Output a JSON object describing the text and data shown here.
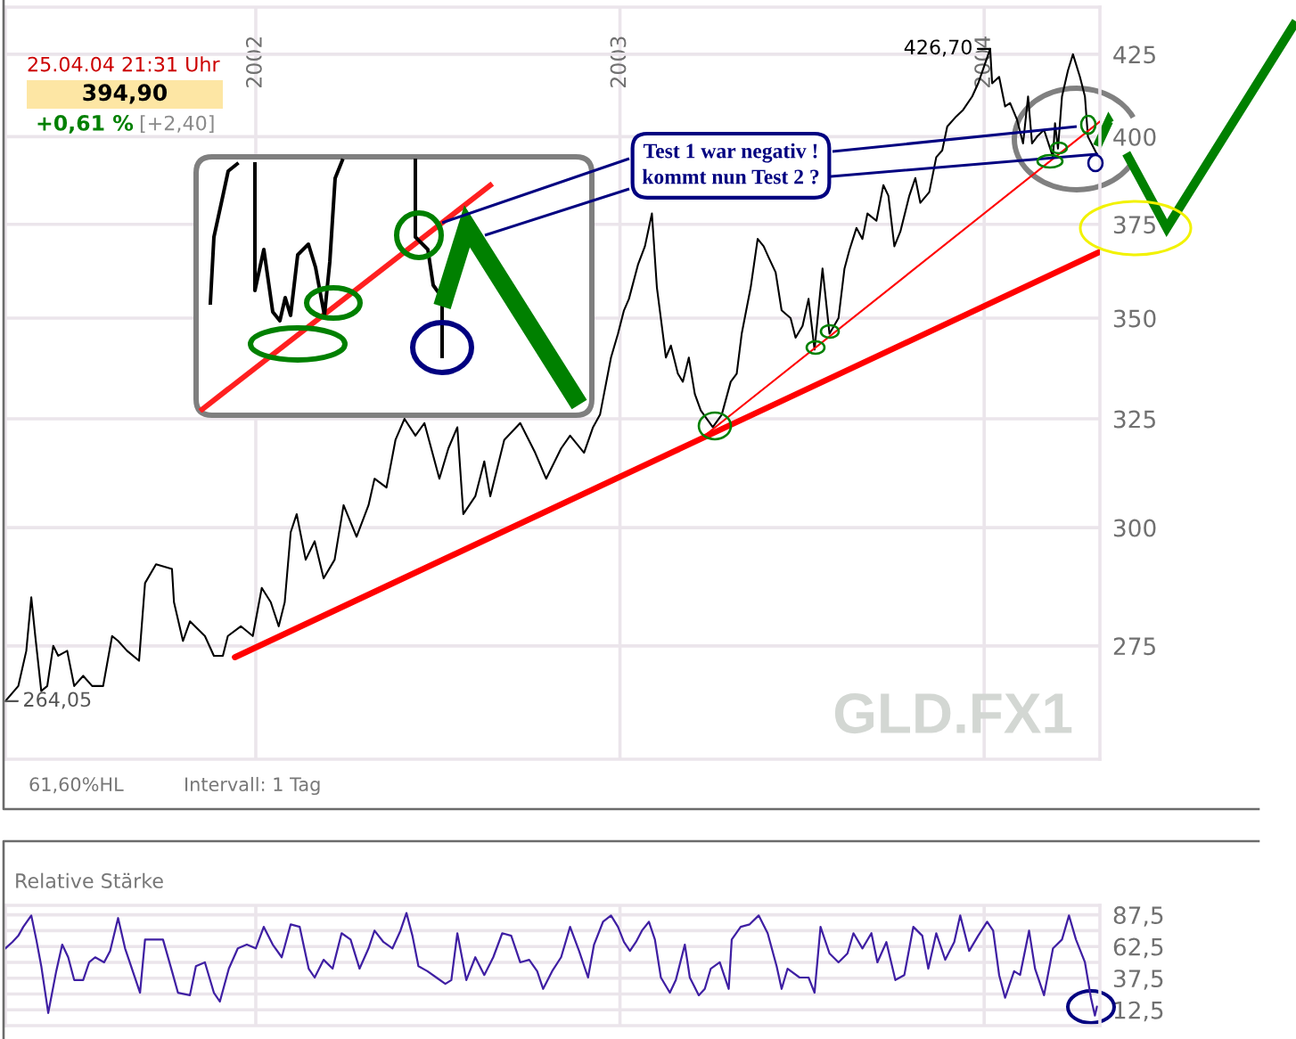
{
  "chart_data": [
    {
      "type": "line",
      "xlim": [
        "2001-04-25",
        "2004-04-26"
      ],
      "xticks": [
        {
          "value": "2002-01-01",
          "label": "2002"
        },
        {
          "value": "2003-01-01",
          "label": "2003"
        },
        {
          "value": "2004-01-01",
          "label": "2004"
        }
      ],
      "ylim": [
        253,
        440
      ],
      "yticks": [
        275,
        300,
        325,
        350,
        375,
        400,
        425
      ],
      "log": true,
      "grid": true,
      "series": [
        {
          "color": "#000000",
          "x": [
            "2001-04-25",
            "2001-05-08",
            "2001-05-16",
            "2001-05-21",
            "2001-05-25",
            "2001-05-31",
            "2001-06-06",
            "2001-06-12",
            "2001-06-17",
            "2001-06-26",
            "2001-07-03",
            "2001-07-12",
            "2001-07-21",
            "2001-08-01",
            "2001-08-10",
            "2001-08-16",
            "2001-08-25",
            "2001-09-06",
            "2001-09-12",
            "2001-09-23",
            "2001-10-09",
            "2001-10-11",
            "2001-10-20",
            "2001-10-27",
            "2001-11-11",
            "2001-11-20",
            "2001-11-29",
            "2001-12-04",
            "2001-12-17",
            "2001-12-29",
            "2002-01-07",
            "2002-01-16",
            "2002-01-24",
            "2002-01-30",
            "2002-02-05",
            "2002-02-11",
            "2002-02-20",
            "2002-03-01",
            "2002-03-10",
            "2002-03-21",
            "2002-03-30",
            "2002-04-12",
            "2002-04-24",
            "2002-04-30",
            "2002-05-12",
            "2002-05-21",
            "2002-05-30",
            "2002-06-10",
            "2002-06-19",
            "2002-07-04",
            "2002-07-13",
            "2002-07-22",
            "2002-07-28",
            "2002-08-09",
            "2002-08-18",
            "2002-08-24",
            "2002-09-07",
            "2002-09-23",
            "2002-10-08",
            "2002-10-19",
            "2002-11-03",
            "2002-11-12",
            "2002-11-26",
            "2002-12-05",
            "2002-12-12",
            "2002-12-23",
            "2002-12-30",
            "2003-01-05",
            "2003-01-10",
            "2003-01-19",
            "2003-01-26",
            "2003-02-02",
            "2003-02-07",
            "2003-02-16",
            "2003-02-21",
            "2003-02-28",
            "2003-03-05",
            "2003-03-11",
            "2003-03-17",
            "2003-03-23",
            "2003-04-04",
            "2003-04-13",
            "2003-04-22",
            "2003-04-28",
            "2003-05-03",
            "2003-05-12",
            "2003-05-19",
            "2003-05-25",
            "2003-05-30",
            "2003-06-06",
            "2003-06-12",
            "2003-06-21",
            "2003-06-26",
            "2003-07-03",
            "2003-07-09",
            "2003-07-15",
            "2003-07-23",
            "2003-07-30",
            "2003-08-08",
            "2003-08-14",
            "2003-08-19",
            "2003-08-26",
            "2003-09-01",
            "2003-09-06",
            "2003-09-15",
            "2003-09-22",
            "2003-09-27",
            "2003-10-03",
            "2003-10-09",
            "2003-10-18",
            "2003-10-24",
            "2003-10-29",
            "2003-11-07",
            "2003-11-14",
            "2003-11-20",
            "2003-11-25",
            "2003-12-04",
            "2003-12-11",
            "2003-12-20",
            "2003-12-26",
            "2004-01-07",
            "2004-01-09",
            "2004-01-16",
            "2004-01-22",
            "2004-01-27",
            "2004-02-03",
            "2004-02-09",
            "2004-02-14",
            "2004-02-18",
            "2004-02-23",
            "2004-03-01",
            "2004-03-10",
            "2004-03-12",
            "2004-03-15",
            "2004-03-19",
            "2004-03-25",
            "2004-03-30",
            "2004-04-06",
            "2004-04-11",
            "2004-04-14",
            "2004-04-23"
          ],
          "values": [
            264.05,
            267,
            274,
            285,
            277,
            266,
            267,
            275,
            273,
            274,
            267,
            269,
            267,
            267,
            277,
            276,
            274,
            272,
            288,
            292,
            291,
            284,
            276,
            280,
            277,
            273,
            273,
            277,
            279,
            277,
            287,
            284,
            279,
            284,
            299,
            303,
            293,
            297,
            289,
            293,
            305,
            298,
            305,
            311,
            309,
            320,
            325,
            321,
            324,
            311,
            318,
            323,
            303,
            307,
            315,
            307,
            320,
            324,
            317,
            311,
            318,
            321,
            317,
            323,
            326,
            340,
            346,
            352,
            355,
            364,
            369,
            378,
            358,
            340,
            343,
            336,
            334,
            340,
            331,
            327,
            323,
            326,
            334,
            336,
            346,
            358,
            371,
            369,
            366,
            362,
            352,
            350,
            345,
            348,
            355,
            342,
            363,
            346,
            350,
            363,
            368,
            374,
            371,
            378,
            376,
            386,
            383,
            369,
            373,
            383,
            388,
            381,
            384,
            394,
            396,
            403,
            406,
            408,
            412,
            416,
            426.7,
            416,
            418,
            409,
            410,
            405,
            398,
            412,
            398,
            400,
            402,
            394,
            404,
            396.5,
            412,
            420,
            425,
            418,
            412,
            400,
            394.9
          ]
        },
        {
          "color": "#ff0000",
          "x": [
            "2001-12-11",
            "2004-04-26"
          ],
          "values": [
            272.7,
            367.5
          ]
        },
        {
          "color": "#ff0000",
          "x": [
            "2003-03-29",
            "2004-04-26"
          ],
          "values": [
            321.4,
            404.5
          ]
        }
      ],
      "annotations": [
        "25.04.04 21:31 Uhr",
        "394,90",
        "+0,61 %",
        "[+2,40]",
        {
          "text": "426,70",
          "x": "2004-01-07",
          "y": 426.7
        },
        {
          "text": "264,05",
          "x": "2001-04-25",
          "y": 264.05
        },
        {
          "text": "Test 1 war negativ !\nkommt nun Test 2 ?",
          "x": "2004-04-23",
          "y": 394.9
        },
        "GLD.FX1",
        "61,60%HL",
        "Intervall: 1 Tag"
      ]
    },
    {
      "type": "line",
      "title": "Relative Stärke",
      "xlim": [
        "2001-04-25",
        "2004-04-26"
      ],
      "xticks": [
        {
          "value": "2002-01-01",
          "label": null
        },
        {
          "value": "2003-01-01",
          "label": null
        },
        {
          "value": "2004-01-01",
          "label": null
        }
      ],
      "ylim": [
        0,
        95
      ],
      "yticks": [
        {
          "value": 12.5,
          "label": "12,5"
        },
        {
          "value": 25,
          "label": null
        },
        {
          "value": 37.5,
          "label": "37,5"
        },
        {
          "value": 50,
          "label": null
        },
        {
          "value": 62.5,
          "label": "62,5"
        },
        {
          "value": 75,
          "label": null
        },
        {
          "value": 87.5,
          "label": "87,5"
        }
      ],
      "grid": true,
      "tick_labels": "y",
      "series": [
        {
          "color": "#3f1fa3",
          "x": [
            "2001-04-25",
            "2001-05-02",
            "2001-05-08",
            "2001-05-13",
            "2001-05-21",
            "2001-05-26",
            "2001-05-31",
            "2001-06-07",
            "2001-06-15",
            "2001-06-21",
            "2001-06-27",
            "2001-07-03",
            "2001-07-12",
            "2001-07-18",
            "2001-07-24",
            "2001-08-02",
            "2001-08-08",
            "2001-08-16",
            "2001-08-23",
            "2001-09-07",
            "2001-09-12",
            "2001-09-21",
            "2001-09-30",
            "2001-10-09",
            "2001-10-15",
            "2001-10-27",
            "2001-11-02",
            "2001-11-11",
            "2001-11-20",
            "2001-11-26",
            "2001-12-05",
            "2001-12-14",
            "2001-12-23",
            "2002-01-01",
            "2002-01-09",
            "2002-01-18",
            "2002-01-27",
            "2002-02-05",
            "2002-02-14",
            "2002-02-23",
            "2002-03-01",
            "2002-03-10",
            "2002-03-19",
            "2002-03-28",
            "2002-04-06",
            "2002-04-15",
            "2002-04-24",
            "2002-04-30",
            "2002-05-09",
            "2002-05-18",
            "2002-05-26",
            "2002-06-01",
            "2002-06-07",
            "2002-06-13",
            "2002-06-22",
            "2002-07-01",
            "2002-07-10",
            "2002-07-16",
            "2002-07-22",
            "2002-07-31",
            "2002-08-09",
            "2002-08-18",
            "2002-08-27",
            "2002-09-05",
            "2002-09-14",
            "2002-09-23",
            "2002-10-02",
            "2002-10-10",
            "2002-10-16",
            "2002-10-25",
            "2002-11-03",
            "2002-11-12",
            "2002-11-21",
            "2002-11-30",
            "2002-12-06",
            "2002-12-15",
            "2002-12-23",
            "2002-12-30",
            "2003-01-05",
            "2003-01-11",
            "2003-01-17",
            "2003-01-23",
            "2003-01-30",
            "2003-02-05",
            "2003-02-11",
            "2003-02-20",
            "2003-02-26",
            "2003-03-07",
            "2003-03-12",
            "2003-03-21",
            "2003-03-27",
            "2003-04-02",
            "2003-04-11",
            "2003-04-20",
            "2003-04-23",
            "2003-05-02",
            "2003-05-11",
            "2003-05-20",
            "2003-05-29",
            "2003-06-07",
            "2003-06-12",
            "2003-06-18",
            "2003-06-30",
            "2003-07-09",
            "2003-07-15",
            "2003-07-21",
            "2003-07-30",
            "2003-08-08",
            "2003-08-17",
            "2003-08-23",
            "2003-09-01",
            "2003-09-10",
            "2003-09-16",
            "2003-09-25",
            "2003-10-04",
            "2003-10-13",
            "2003-10-22",
            "2003-10-31",
            "2003-11-06",
            "2003-11-14",
            "2003-11-23",
            "2003-12-02",
            "2003-12-08",
            "2003-12-17",
            "2003-12-26",
            "2004-01-04",
            "2004-01-10",
            "2004-01-16",
            "2004-01-22",
            "2004-01-31",
            "2004-02-06",
            "2004-02-15",
            "2004-02-21",
            "2004-03-01",
            "2004-03-10",
            "2004-03-19",
            "2004-03-26",
            "2004-04-02",
            "2004-04-11",
            "2004-04-17",
            "2004-04-21",
            "2004-04-23"
          ],
          "values": [
            61,
            66,
            71,
            78,
            87,
            68,
            47,
            10,
            43,
            64,
            54,
            36,
            36,
            50,
            54,
            50,
            59,
            85,
            61,
            26,
            68,
            68,
            68,
            43,
            26,
            24,
            47,
            50,
            26,
            19,
            45,
            61,
            64,
            61,
            78,
            64,
            54,
            80,
            78,
            45,
            38,
            52,
            45,
            73,
            68,
            45,
            61,
            75,
            66,
            61,
            75,
            89,
            71,
            47,
            43,
            38,
            33,
            36,
            73,
            36,
            54,
            40,
            54,
            73,
            71,
            50,
            52,
            43,
            29,
            43,
            54,
            78,
            59,
            38,
            64,
            82,
            87,
            78,
            66,
            59,
            66,
            75,
            82,
            68,
            38,
            26,
            36,
            64,
            38,
            24,
            29,
            45,
            50,
            29,
            68,
            78,
            80,
            87,
            73,
            47,
            29,
            45,
            38,
            38,
            26,
            78,
            57,
            50,
            57,
            73,
            61,
            73,
            50,
            66,
            36,
            40,
            78,
            71,
            45,
            73,
            52,
            66,
            87,
            59,
            71,
            82,
            75,
            40,
            22,
            43,
            40,
            75,
            45,
            24,
            61,
            68,
            87,
            68,
            50,
            22,
            8,
            15
          ]
        }
      ]
    }
  ]
}
